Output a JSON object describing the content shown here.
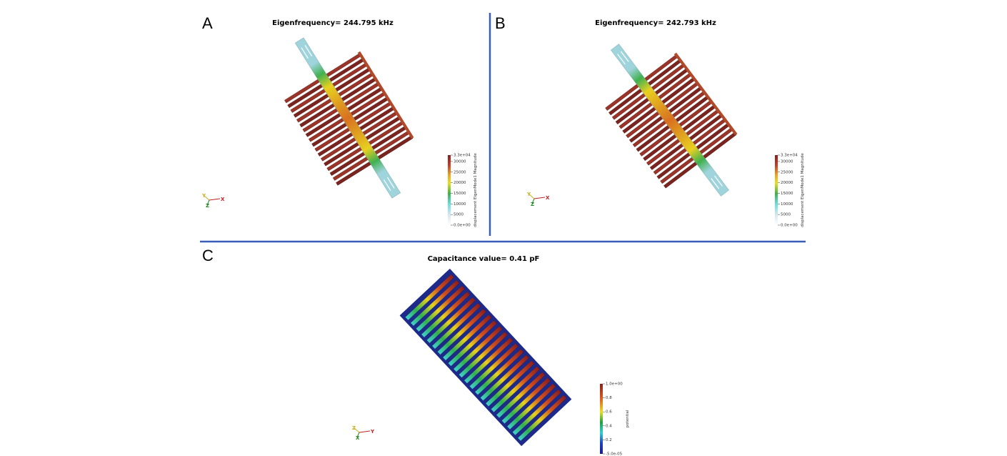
{
  "panels": [
    {
      "label": "A",
      "title": "Eigenfrequency= 244.795 kHz",
      "colorbar": {
        "title": "displacement EigenMode1 Magnitude",
        "ticks": [
          "3.3e+04",
          "30000",
          "25000",
          "20000",
          "15000",
          "10000",
          "5000",
          "0.0e+00"
        ]
      },
      "axes": [
        "Y",
        "Z",
        "X"
      ]
    },
    {
      "label": "B",
      "title": "Eigenfrequency= 242.793 kHz",
      "colorbar": {
        "title": "displacement EigenMode1 Magnitude",
        "ticks": [
          "3.3e+04",
          "30000",
          "25000",
          "20000",
          "15000",
          "10000",
          "5000",
          "0.0e+00"
        ]
      },
      "axes": [
        "Y",
        "Z",
        "X"
      ]
    },
    {
      "label": "C",
      "title": "Capacitance value= 0.41 pF",
      "colorbar": {
        "title": "potential",
        "ticks": [
          "1.0e+00",
          "0.8",
          "0.6",
          "0.4",
          "0.2",
          "-5.0e-05"
        ]
      },
      "axes": [
        "Z",
        "X",
        "Y"
      ]
    }
  ]
}
